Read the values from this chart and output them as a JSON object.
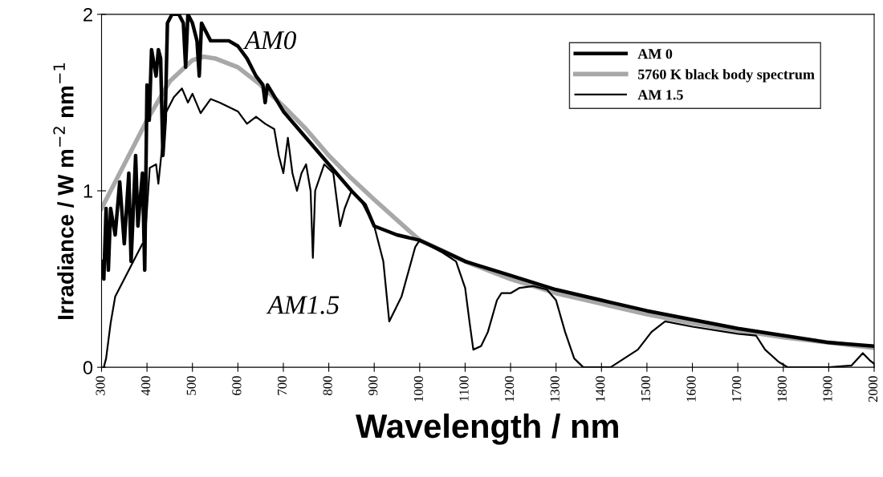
{
  "chart_data": {
    "type": "line",
    "xlabel": "Wavelength / nm",
    "ylabel": "Irradiance / W m$^{−2}$ nm$^{−1}$",
    "xlim": [
      300,
      2000
    ],
    "ylim": [
      0,
      2
    ],
    "xticks": [
      300,
      400,
      500,
      600,
      700,
      800,
      900,
      1000,
      1100,
      1200,
      1300,
      1400,
      1500,
      1600,
      1700,
      1800,
      1900,
      2000
    ],
    "yticks": [
      0,
      1,
      2
    ],
    "grid": false,
    "legend": "top right",
    "marker": "none",
    "line_style": "solid",
    "series": [
      {
        "name": "AM 0",
        "color": "#000000",
        "x": [
          300,
          305,
          310,
          315,
          320,
          330,
          340,
          350,
          360,
          365,
          375,
          380,
          390,
          395,
          400,
          405,
          410,
          420,
          425,
          430,
          435,
          440,
          445,
          455,
          470,
          480,
          485,
          490,
          500,
          510,
          515,
          520,
          530,
          540,
          560,
          580,
          600,
          620,
          640,
          655,
          660,
          665,
          700,
          750,
          800,
          850,
          880,
          900,
          950,
          1000,
          1050,
          1100,
          1200,
          1300,
          1400,
          1500,
          1600,
          1700,
          1800,
          1900,
          2000
        ],
        "values": [
          0.6,
          0.5,
          0.9,
          0.55,
          0.9,
          0.75,
          1.05,
          0.7,
          1.1,
          0.6,
          1.2,
          0.8,
          1.1,
          0.55,
          1.6,
          1.4,
          1.8,
          1.65,
          1.8,
          1.75,
          1.2,
          1.4,
          1.95,
          2.0,
          2.0,
          1.95,
          1.7,
          2.0,
          1.95,
          1.85,
          1.65,
          1.95,
          1.9,
          1.85,
          1.85,
          1.85,
          1.82,
          1.75,
          1.65,
          1.6,
          1.5,
          1.6,
          1.45,
          1.3,
          1.15,
          1.0,
          0.92,
          0.8,
          0.75,
          0.72,
          0.66,
          0.6,
          0.52,
          0.44,
          0.38,
          0.32,
          0.27,
          0.22,
          0.18,
          0.14,
          0.12
        ]
      },
      {
        "name": "5760 K black body spectrum",
        "color": "#a8a8a8",
        "x": [
          300,
          350,
          400,
          450,
          500,
          525,
          550,
          600,
          650,
          700,
          750,
          800,
          850,
          900,
          1000,
          1100,
          1200,
          1300,
          1400,
          1500,
          1600,
          1700,
          1800,
          1900,
          2000
        ],
        "values": [
          0.9,
          1.15,
          1.4,
          1.62,
          1.74,
          1.76,
          1.75,
          1.7,
          1.6,
          1.48,
          1.35,
          1.2,
          1.07,
          0.95,
          0.72,
          0.6,
          0.5,
          0.42,
          0.36,
          0.3,
          0.25,
          0.21,
          0.17,
          0.14,
          0.11
        ]
      },
      {
        "name": "AM 1.5",
        "color": "#000000",
        "x": [
          305,
          310,
          320,
          330,
          340,
          350,
          360,
          370,
          380,
          390,
          395,
          406,
          420,
          425,
          441,
          459,
          477,
          490,
          500,
          518,
          540,
          560,
          600,
          620,
          640,
          660,
          680,
          690,
          700,
          710,
          720,
          730,
          740,
          750,
          760,
          765,
          770,
          790,
          810,
          825,
          835,
          850,
          870,
          900,
          920,
          933,
          960,
          990,
          1000,
          1050,
          1080,
          1100,
          1110,
          1118,
          1135,
          1150,
          1170,
          1180,
          1200,
          1220,
          1250,
          1280,
          1300,
          1320,
          1340,
          1360,
          1400,
          1420,
          1450,
          1480,
          1510,
          1540,
          1600,
          1700,
          1740,
          1760,
          1790,
          1810,
          1900,
          1950,
          1975,
          1990,
          2000
        ],
        "values": [
          0.0,
          0.05,
          0.25,
          0.4,
          0.45,
          0.5,
          0.55,
          0.6,
          0.65,
          0.7,
          0.7,
          1.13,
          1.15,
          1.04,
          1.44,
          1.53,
          1.58,
          1.5,
          1.55,
          1.44,
          1.52,
          1.5,
          1.45,
          1.38,
          1.42,
          1.38,
          1.35,
          1.2,
          1.1,
          1.3,
          1.1,
          1.0,
          1.1,
          1.15,
          1.0,
          0.62,
          1.0,
          1.15,
          1.1,
          0.8,
          0.9,
          1.0,
          0.95,
          0.8,
          0.6,
          0.26,
          0.4,
          0.68,
          0.72,
          0.65,
          0.6,
          0.45,
          0.25,
          0.1,
          0.12,
          0.2,
          0.38,
          0.42,
          0.42,
          0.45,
          0.46,
          0.44,
          0.38,
          0.2,
          0.05,
          0.0,
          0.0,
          0.0,
          0.05,
          0.1,
          0.2,
          0.26,
          0.23,
          0.19,
          0.18,
          0.1,
          0.03,
          0.0,
          0.0,
          0.01,
          0.08,
          0.04,
          0.02
        ]
      }
    ],
    "annotations": [
      "AM0",
      "AM1.5"
    ]
  }
}
